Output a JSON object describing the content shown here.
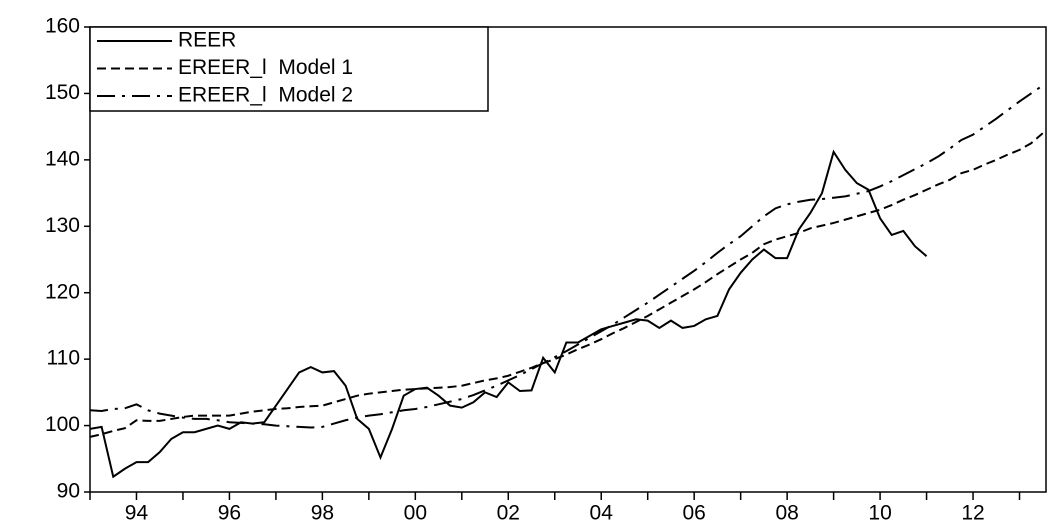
{
  "chart_data": {
    "type": "line",
    "x": [
      1993,
      1993.25,
      1993.5,
      1993.75,
      1994,
      1994.25,
      1994.5,
      1994.75,
      1995,
      1995.25,
      1995.5,
      1995.75,
      1996,
      1996.25,
      1996.5,
      1996.75,
      1997,
      1997.25,
      1997.5,
      1997.75,
      1998,
      1998.25,
      1998.5,
      1998.75,
      1999,
      1999.25,
      1999.5,
      1999.75,
      2000,
      2000.25,
      2000.5,
      2000.75,
      2001,
      2001.25,
      2001.5,
      2001.75,
      2002,
      2002.25,
      2002.5,
      2002.75,
      2003,
      2003.25,
      2003.5,
      2003.75,
      2004,
      2004.25,
      2004.5,
      2004.75,
      2005,
      2005.25,
      2005.5,
      2005.75,
      2006,
      2006.25,
      2006.5,
      2006.75,
      2007,
      2007.25,
      2007.5,
      2007.75,
      2008,
      2008.25,
      2008.5,
      2008.75,
      2009,
      2009.25,
      2009.5,
      2009.75,
      2010,
      2010.25,
      2010.5,
      2010.75,
      2011,
      2011.25,
      2011.5,
      2011.75,
      2012,
      2012.25,
      2012.5,
      2012.75,
      2013,
      2013.25,
      2013.5
    ],
    "series": [
      {
        "name": "REER",
        "color": "#000000",
        "dash": "solid",
        "values": [
          99.5,
          99.8,
          92.3,
          93.5,
          94.5,
          94.5,
          96,
          98,
          99,
          99,
          99.5,
          100,
          99.5,
          100.5,
          100.3,
          100.5,
          103,
          105.5,
          108,
          108.8,
          108,
          108.2,
          106,
          101,
          99.5,
          95.2,
          99.5,
          104.5,
          105.5,
          105.7,
          104.5,
          103,
          102.7,
          103.5,
          105,
          104.3,
          106.5,
          105.2,
          105.3,
          110.2,
          108,
          112.5,
          112.5,
          113.5,
          114.5,
          115,
          115.5,
          116,
          115.8,
          114.7,
          115.8,
          114.7,
          115,
          116,
          116.5,
          120.5,
          123,
          125,
          126.5,
          125.2,
          125.2,
          129.5,
          132,
          135,
          141.2,
          138.5,
          136.5,
          135.5,
          131.2,
          128.7,
          129.3,
          127,
          125.5,
          null,
          null,
          null,
          null,
          null,
          null,
          null,
          null,
          null,
          null
        ]
      },
      {
        "name": "EREER_l  Model 1",
        "color": "#000000",
        "dash": "dashed",
        "values": [
          98.3,
          98.7,
          99.2,
          99.6,
          100.8,
          100.7,
          100.7,
          101,
          101.3,
          101.5,
          101.5,
          101.5,
          101.5,
          101.8,
          102.1,
          102.3,
          102.5,
          102.6,
          102.8,
          102.9,
          103,
          103.5,
          104,
          104.5,
          104.8,
          105,
          105.2,
          105.4,
          105.5,
          105.6,
          105.7,
          105.8,
          106,
          106.4,
          106.8,
          107.1,
          107.5,
          108.1,
          108.7,
          109.4,
          110,
          110.7,
          111.5,
          112.2,
          113,
          113.9,
          114.7,
          115.6,
          116.5,
          117.5,
          118.5,
          119.5,
          120.5,
          121.6,
          122.8,
          123.9,
          125,
          126,
          127.3,
          128,
          128.5,
          129,
          129.7,
          130.1,
          130.5,
          131,
          131.5,
          132,
          132.5,
          133.2,
          134,
          134.7,
          135.5,
          136.3,
          137,
          138,
          138.5,
          139.3,
          140,
          140.8,
          141.5,
          142.5,
          144
        ]
      },
      {
        "name": "EREER_l  Model 2",
        "color": "#000000",
        "dash": "longdash",
        "values": [
          102.3,
          102.2,
          102.5,
          102.6,
          103.2,
          102.3,
          101.8,
          101.5,
          101.2,
          101,
          101,
          100.8,
          100.5,
          100.4,
          100.3,
          100.2,
          100,
          99.9,
          99.8,
          99.7,
          99.8,
          100.3,
          100.8,
          101.2,
          101.5,
          101.7,
          102,
          102.3,
          102.5,
          102.8,
          103.2,
          103.6,
          104,
          104.6,
          105.3,
          106,
          106.8,
          107.6,
          108.5,
          109.4,
          110.3,
          111.2,
          112.2,
          113.2,
          114.2,
          115.2,
          116.3,
          117.4,
          118.5,
          119.7,
          120.9,
          122.1,
          123.3,
          124.6,
          126,
          127.3,
          128.5,
          130,
          131.5,
          132.7,
          133.3,
          133.7,
          134,
          134.1,
          134.3,
          134.5,
          134.9,
          135.3,
          136,
          136.8,
          137.7,
          138.6,
          139.5,
          140.5,
          141.7,
          143,
          143.8,
          145,
          146.2,
          147.5,
          148.8,
          150,
          151.2
        ]
      }
    ],
    "xlim": [
      1993,
      2013.57
    ],
    "xticks": [
      {
        "value": 1994,
        "label": "94"
      },
      {
        "value": 1996,
        "label": "96"
      },
      {
        "value": 1998,
        "label": "98"
      },
      {
        "value": 2000,
        "label": "00"
      },
      {
        "value": 2002,
        "label": "02"
      },
      {
        "value": 2004,
        "label": "04"
      },
      {
        "value": 2006,
        "label": "06"
      },
      {
        "value": 2008,
        "label": "08"
      },
      {
        "value": 2010,
        "label": "10"
      },
      {
        "value": 2012,
        "label": "12"
      }
    ],
    "xminorticks": [
      1993,
      1995,
      1997,
      1999,
      2001,
      2003,
      2005,
      2007,
      2009,
      2011,
      2013
    ],
    "ylim": [
      90,
      160
    ],
    "yticks": [
      90,
      100,
      110,
      120,
      130,
      140,
      150,
      160
    ],
    "grid": false,
    "legend": "upper left"
  }
}
